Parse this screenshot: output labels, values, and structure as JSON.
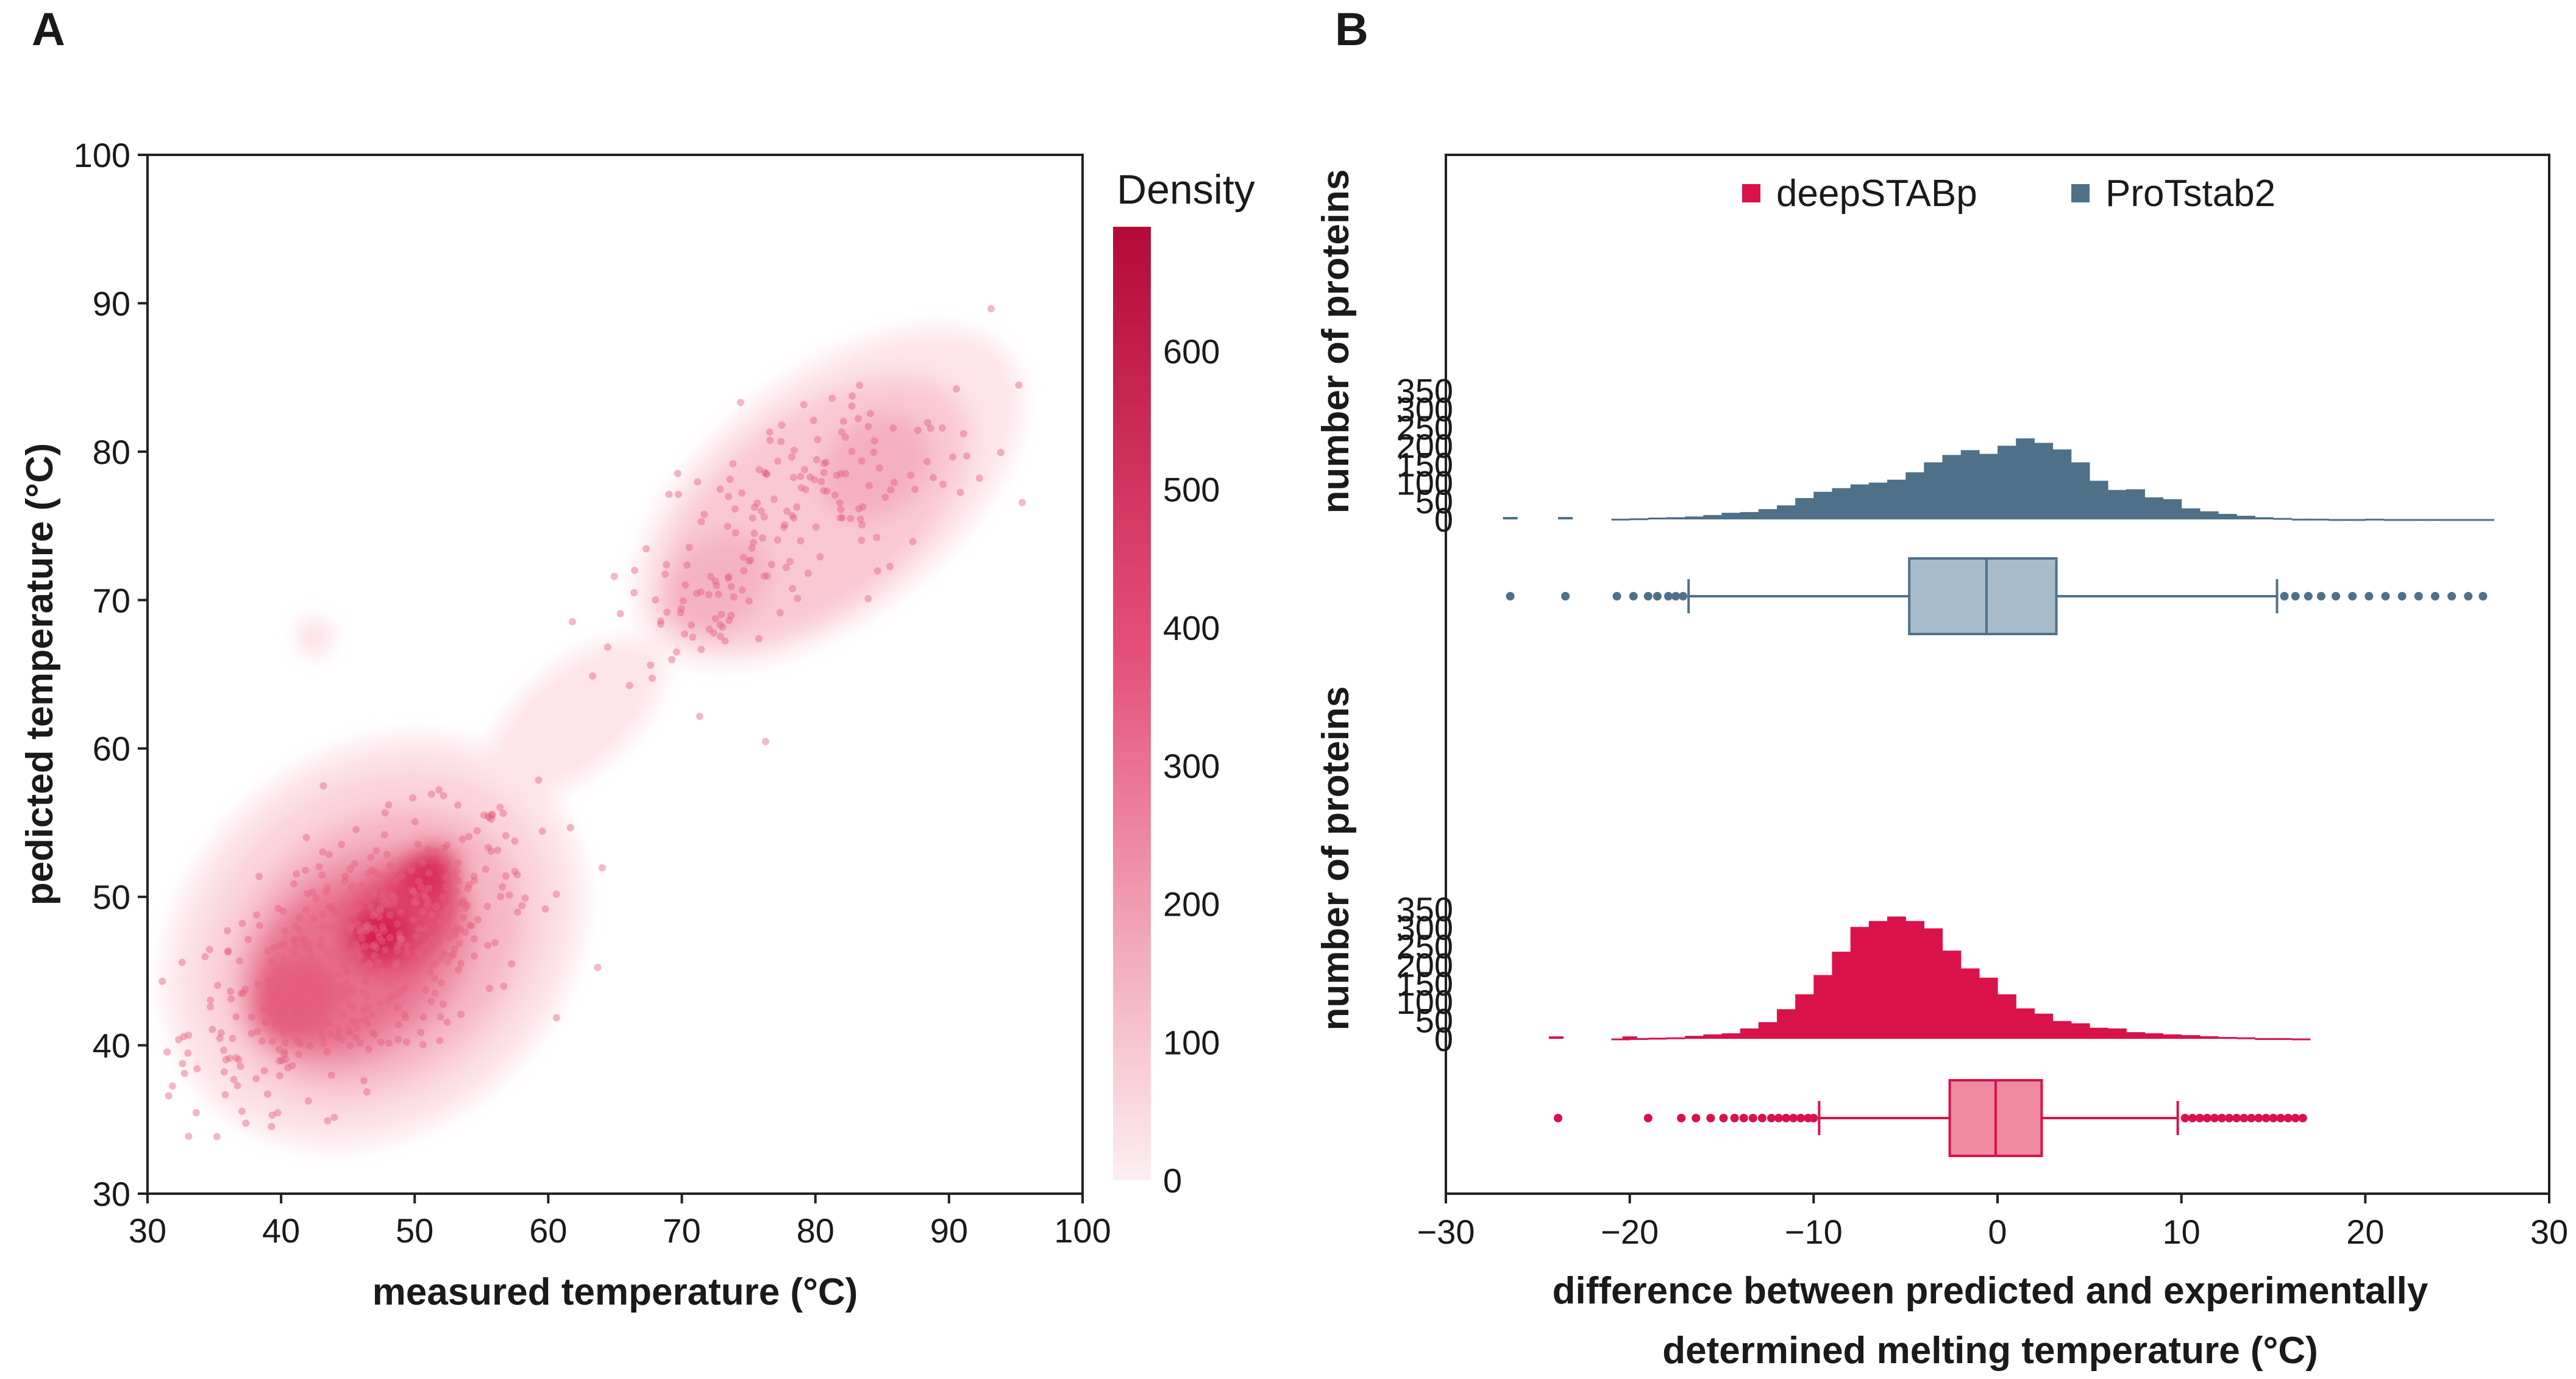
{
  "colors": {
    "deepstabp": "#d9124a",
    "protstab2": "#4f7089",
    "deepstabp_box": "#ee8aa2",
    "protstab2_box": "#a9bccb"
  },
  "chart_data": [
    {
      "panel": "A",
      "type": "heatmap",
      "subtype": "2d-density-contour-with-scatter",
      "xlabel": "measured temperature (°C)",
      "ylabel": "pedicted temperature (°C)",
      "xlim": [
        30,
        100
      ],
      "ylim": [
        30,
        100
      ],
      "xticks": [
        30,
        40,
        50,
        60,
        70,
        80,
        90,
        100
      ],
      "yticks": [
        30,
        40,
        50,
        60,
        70,
        80,
        90,
        100
      ],
      "colorbar": {
        "title": "Density",
        "range": [
          0,
          690
        ],
        "ticks": [
          0,
          100,
          200,
          300,
          400,
          500,
          600
        ]
      },
      "density_peaks": [
        {
          "x": 47.5,
          "y": 47.5,
          "density": 690
        },
        {
          "x": 51,
          "y": 51.5,
          "density": 600
        },
        {
          "x": 41,
          "y": 43,
          "density": 420
        },
        {
          "x": 72,
          "y": 71,
          "density": 110
        },
        {
          "x": 85,
          "y": 79,
          "density": 120
        },
        {
          "x": 42.5,
          "y": 67.5,
          "density": 15
        }
      ]
    },
    {
      "panel": "B",
      "type": "bar",
      "subtype": "histogram-with-boxplots",
      "xlabel": "difference between predicted and experimentally determined melting temperature (°C)",
      "ylabel": "number of proteins",
      "xlim": [
        -30,
        30
      ],
      "xticks": [
        -30,
        -20,
        -10,
        0,
        10,
        20,
        30
      ],
      "yticks": [
        0,
        50,
        100,
        150,
        200,
        250,
        300,
        350
      ],
      "ylim": [
        0,
        350
      ],
      "legend": {
        "position": "top",
        "items": [
          "deepSTABp",
          "ProTstab2"
        ]
      },
      "bin_start": -21,
      "bin_width": 1,
      "series": [
        {
          "name": "ProTstab2",
          "values": [
            2,
            3,
            5,
            6,
            8,
            12,
            18,
            20,
            28,
            38,
            58,
            75,
            85,
            95,
            100,
            108,
            128,
            155,
            175,
            188,
            178,
            200,
            220,
            208,
            190,
            155,
            105,
            80,
            82,
            60,
            55,
            30,
            22,
            15,
            10,
            6,
            4,
            2,
            2,
            1,
            1,
            2,
            1,
            1,
            1,
            1,
            1,
            1
          ],
          "outlier_ticks_x": [
            -26.5,
            -23.5
          ],
          "boxplot": {
            "whisker_low": -16.8,
            "q1": -4.8,
            "median": -0.6,
            "q3": 3.2,
            "whisker_high": 15.2,
            "outliers": [
              -26.5,
              -23.5,
              -20.7,
              -19.8,
              -19.0,
              -18.5,
              -17.9,
              -17.5,
              -17.1,
              15.6,
              16.2,
              16.9,
              17.6,
              18.4,
              19.3,
              20.2,
              21.1,
              22.0,
              22.9,
              23.8,
              24.7,
              25.6,
              26.4
            ]
          }
        },
        {
          "name": "deepSTABp",
          "values": [
            1,
            2,
            3,
            4,
            8,
            12,
            15,
            28,
            45,
            80,
            120,
            172,
            235,
            302,
            318,
            330,
            318,
            298,
            238,
            190,
            165,
            120,
            82,
            68,
            48,
            42,
            30,
            28,
            18,
            15,
            12,
            10,
            7,
            5,
            4,
            2,
            2,
            1
          ],
          "outlier_ticks_x": [
            -24,
            -20
          ],
          "boxplot": {
            "whisker_low": -9.7,
            "q1": -2.6,
            "median": -0.1,
            "q3": 2.4,
            "whisker_high": 9.8,
            "outliers": [
              -23.9,
              -19.0,
              -17.2,
              -16.4,
              -15.6,
              -14.9,
              -14.3,
              -13.8,
              -13.3,
              -12.8,
              -12.3,
              -11.9,
              -11.5,
              -11.1,
              -10.7,
              -10.3,
              -10.0,
              10.2,
              10.6,
              11.0,
              11.4,
              11.8,
              12.2,
              12.6,
              13.0,
              13.4,
              13.8,
              14.2,
              14.6,
              15.0,
              15.4,
              15.8,
              16.2,
              16.6
            ]
          }
        }
      ]
    }
  ]
}
